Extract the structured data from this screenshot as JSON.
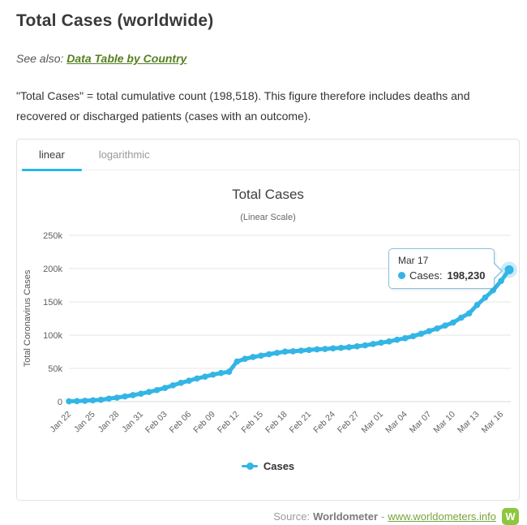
{
  "page": {
    "title": "Total Cases (worldwide)",
    "see_also_label": "See also:",
    "see_also_link": "Data Table by Country",
    "description": "\"Total Cases\" = total cumulative count (198,518). This figure therefore includes deaths and recovered or discharged patients (cases with an outcome)."
  },
  "tabs": [
    {
      "label": "linear",
      "active": true
    },
    {
      "label": "logarithmic",
      "active": false
    }
  ],
  "chart_data": {
    "type": "line",
    "title": "Total Cases",
    "subtitle": "(Linear Scale)",
    "xlabel": "",
    "ylabel": "Total Coronavirus Cases",
    "ylim": [
      0,
      250000
    ],
    "yticks": [
      0,
      50000,
      100000,
      150000,
      200000,
      250000
    ],
    "ytick_labels": [
      "0",
      "50k",
      "100k",
      "150k",
      "200k",
      "250k"
    ],
    "grid": true,
    "legend_position": "bottom",
    "line_color": "#33b5e5",
    "xtick_every": 3,
    "series": [
      {
        "name": "Cases",
        "values": [
          580,
          845,
          1317,
          2015,
          2800,
          4581,
          6058,
          7813,
          9823,
          11950,
          14553,
          17391,
          20630,
          24545,
          28266,
          31439,
          34876,
          37552,
          40553,
          43099,
          44919,
          60330,
          64437,
          67100,
          69197,
          71329,
          73332,
          75184,
          75700,
          76677,
          77673,
          78651,
          79205,
          80087,
          80828,
          81820,
          83112,
          84615,
          86604,
          88585,
          90443,
          93016,
          95314,
          98425,
          102050,
          106099,
          109991,
          114381,
          118948,
          126214,
          132758,
          145416,
          156475,
          167446,
          181531,
          198230
        ]
      }
    ],
    "categories": [
      "Jan 22",
      "Jan 23",
      "Jan 24",
      "Jan 25",
      "Jan 26",
      "Jan 27",
      "Jan 28",
      "Jan 29",
      "Jan 30",
      "Jan 31",
      "Feb 01",
      "Feb 02",
      "Feb 03",
      "Feb 04",
      "Feb 05",
      "Feb 06",
      "Feb 07",
      "Feb 08",
      "Feb 09",
      "Feb 10",
      "Feb 11",
      "Feb 12",
      "Feb 13",
      "Feb 14",
      "Feb 15",
      "Feb 16",
      "Feb 17",
      "Feb 18",
      "Feb 19",
      "Feb 20",
      "Feb 21",
      "Feb 22",
      "Feb 23",
      "Feb 24",
      "Feb 25",
      "Feb 26",
      "Feb 27",
      "Feb 28",
      "Feb 29",
      "Mar 01",
      "Mar 02",
      "Mar 03",
      "Mar 04",
      "Mar 05",
      "Mar 06",
      "Mar 07",
      "Mar 08",
      "Mar 09",
      "Mar 10",
      "Mar 11",
      "Mar 12",
      "Mar 13",
      "Mar 14",
      "Mar 15",
      "Mar 16",
      "Mar 17"
    ]
  },
  "tooltip": {
    "date": "Mar 17",
    "label": "Cases:",
    "value": "198,230"
  },
  "legend": {
    "label": "Cases"
  },
  "footer": {
    "source_label": "Source:",
    "source_name": "Worldometer",
    "separator": "-",
    "link": "www.worldometers.info",
    "logo_letter": "W"
  }
}
